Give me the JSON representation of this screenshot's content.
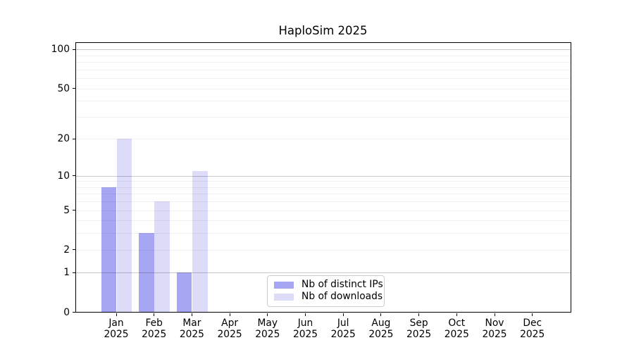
{
  "chart_data": {
    "type": "bar",
    "title": "HaploSim 2025",
    "categories": [
      {
        "month": "Jan",
        "year": "2025"
      },
      {
        "month": "Feb",
        "year": "2025"
      },
      {
        "month": "Mar",
        "year": "2025"
      },
      {
        "month": "Apr",
        "year": "2025"
      },
      {
        "month": "May",
        "year": "2025"
      },
      {
        "month": "Jun",
        "year": "2025"
      },
      {
        "month": "Jul",
        "year": "2025"
      },
      {
        "month": "Aug",
        "year": "2025"
      },
      {
        "month": "Sep",
        "year": "2025"
      },
      {
        "month": "Oct",
        "year": "2025"
      },
      {
        "month": "Nov",
        "year": "2025"
      },
      {
        "month": "Dec",
        "year": "2025"
      }
    ],
    "series": [
      {
        "name": "Nb of distinct IPs",
        "color": "#a6a6f2",
        "values": [
          8,
          3,
          1,
          0,
          0,
          0,
          0,
          0,
          0,
          0,
          0,
          0
        ]
      },
      {
        "name": "Nb of downloads",
        "color": "#dcdcf8",
        "values": [
          20,
          6,
          11,
          0,
          0,
          0,
          0,
          0,
          0,
          0,
          0,
          0
        ]
      }
    ],
    "xlabel": "",
    "ylabel": "",
    "yscale": "log1p",
    "ylim": [
      0,
      113
    ],
    "yticks": [
      0,
      1,
      2,
      5,
      10,
      20,
      50,
      100
    ],
    "grid_major": [
      1,
      10,
      100
    ],
    "grid_minor": [
      2,
      3,
      4,
      5,
      6,
      7,
      8,
      9,
      20,
      30,
      40,
      50,
      60,
      70,
      80,
      90
    ],
    "legend": {
      "position": "lower center"
    }
  },
  "colors": {
    "axis": "#000000",
    "grid_major": "#c9c9c9",
    "grid_minor": "#f0f0f0",
    "background": "#ffffff"
  }
}
